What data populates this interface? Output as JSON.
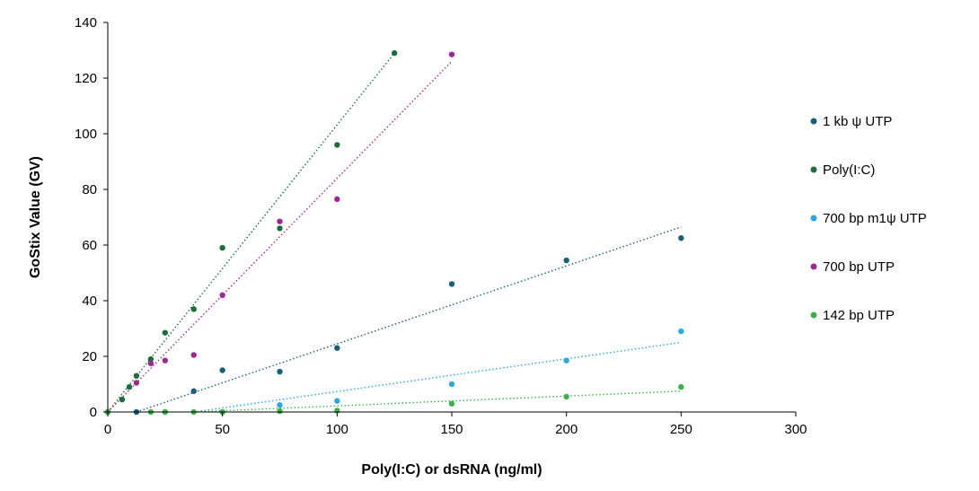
{
  "chart_data": {
    "type": "scatter",
    "title": "",
    "xlabel": "Poly(I:C) or dsRNA (ng/ml)",
    "ylabel": "GoStix Value (GV)",
    "xlim": [
      0,
      300
    ],
    "ylim": [
      0,
      140
    ],
    "x_ticks": [
      0,
      50,
      100,
      150,
      200,
      250,
      300
    ],
    "y_ticks": [
      0,
      20,
      40,
      60,
      80,
      100,
      120,
      140
    ],
    "x_tick_labels": [
      "0",
      "50",
      "100",
      "150",
      "200",
      "250",
      "300"
    ],
    "y_tick_labels": [
      "0",
      "20",
      "40",
      "60",
      "80",
      "100",
      "120",
      "140"
    ],
    "grid": false,
    "legend_position": "right",
    "trendline_style": "dotted linear",
    "series": [
      {
        "name": "1 kb ψ UTP",
        "color": "#1a5e7a",
        "x": [
          0,
          12.5,
          37.5,
          50,
          75,
          100,
          150,
          200,
          250
        ],
        "y": [
          0,
          0,
          7.5,
          15,
          14.5,
          23,
          46,
          54.5,
          62.5
        ],
        "trendline": {
          "x": [
            12.5,
            250
          ],
          "y": [
            0,
            66.5
          ]
        }
      },
      {
        "name": "Poly(I:C)",
        "color": "#1e6b3c",
        "x": [
          0,
          6.25,
          9.4,
          12.5,
          18.75,
          25,
          37.5,
          50,
          75,
          100,
          125
        ],
        "y": [
          0,
          4.5,
          9,
          13,
          19,
          28.5,
          37,
          59,
          66,
          96,
          129
        ],
        "trendline": {
          "x": [
            0,
            125
          ],
          "y": [
            0,
            129
          ]
        }
      },
      {
        "name": "700 bp m1ψ UTP",
        "color": "#2aa8df",
        "x": [
          0,
          25,
          50,
          75,
          100,
          150,
          200,
          250
        ],
        "y": [
          0,
          0,
          0,
          2.5,
          4,
          10,
          18.5,
          29
        ],
        "trendline": {
          "x": [
            37.5,
            250
          ],
          "y": [
            0,
            25
          ]
        }
      },
      {
        "name": "700 bp UTP",
        "color": "#9b2a8e",
        "x": [
          0,
          12.5,
          18.75,
          25,
          37.5,
          50,
          75,
          100,
          150
        ],
        "y": [
          0,
          10.5,
          17.5,
          18.5,
          20.5,
          42,
          68.5,
          76.5,
          128.5
        ],
        "trendline": {
          "x": [
            0,
            150
          ],
          "y": [
            0,
            126
          ]
        }
      },
      {
        "name": "142 bp UTP",
        "color": "#3db04a",
        "x": [
          0,
          18.75,
          25,
          37.5,
          50,
          75,
          100,
          150,
          200,
          250
        ],
        "y": [
          0,
          0,
          0,
          0,
          0,
          0.3,
          0.5,
          3,
          5.5,
          9
        ],
        "trendline": {
          "x": [
            37.5,
            250
          ],
          "y": [
            0,
            7.5
          ]
        }
      }
    ]
  }
}
